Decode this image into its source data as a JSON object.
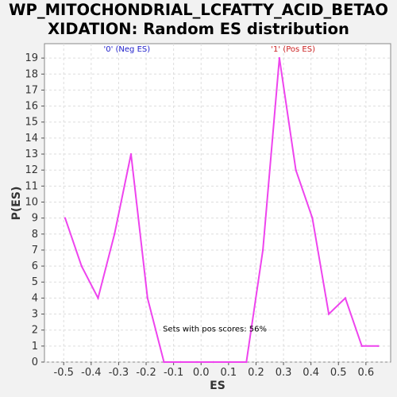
{
  "chart_data": {
    "type": "line",
    "title": "WP_MITOCHONDRIAL_LCFATTY_ACID_BETAO\nXIDATION: Random ES distribution",
    "xlabel": "ES",
    "ylabel": "P(ES)",
    "xlim": [
      -0.57,
      0.69
    ],
    "ylim": [
      0,
      19.9
    ],
    "xticks": [
      "-0.5",
      "-0.4",
      "-0.3",
      "-0.2",
      "-0.1",
      "0.0",
      "0.1",
      "0.2",
      "0.3",
      "0.4",
      "0.5",
      "0.6"
    ],
    "xtick_values": [
      -0.5,
      -0.4,
      -0.3,
      -0.2,
      -0.1,
      0.0,
      0.1,
      0.2,
      0.3,
      0.4,
      0.5,
      0.6
    ],
    "yticks": [
      0,
      1,
      2,
      3,
      4,
      5,
      6,
      7,
      8,
      9,
      10,
      11,
      12,
      13,
      14,
      15,
      16,
      17,
      18,
      19
    ],
    "grid": true,
    "series": [
      {
        "color": "#ee44ee",
        "x": [
          -0.495,
          -0.435,
          -0.375,
          -0.315,
          -0.255,
          -0.195,
          -0.135,
          -0.075,
          -0.015,
          0.045,
          0.105,
          0.165,
          0.225,
          0.285,
          0.345,
          0.405,
          0.465,
          0.525,
          0.585,
          0.645
        ],
        "y": [
          9,
          6,
          4,
          8,
          13,
          4,
          0,
          0,
          0,
          0,
          0,
          0,
          7,
          19,
          12,
          9,
          3,
          4,
          1,
          1
        ]
      }
    ],
    "annotations": [
      {
        "text": "'0' (Neg ES)",
        "x": -0.27,
        "y": 19.4,
        "color": "#2222cc"
      },
      {
        "text": "'1' (Pos ES)",
        "x": 0.335,
        "y": 19.4,
        "color": "#cc2222"
      },
      {
        "text": "Sets with pos scores: 56%",
        "x": 0.05,
        "y": 1.9,
        "color": "#000000"
      }
    ]
  }
}
